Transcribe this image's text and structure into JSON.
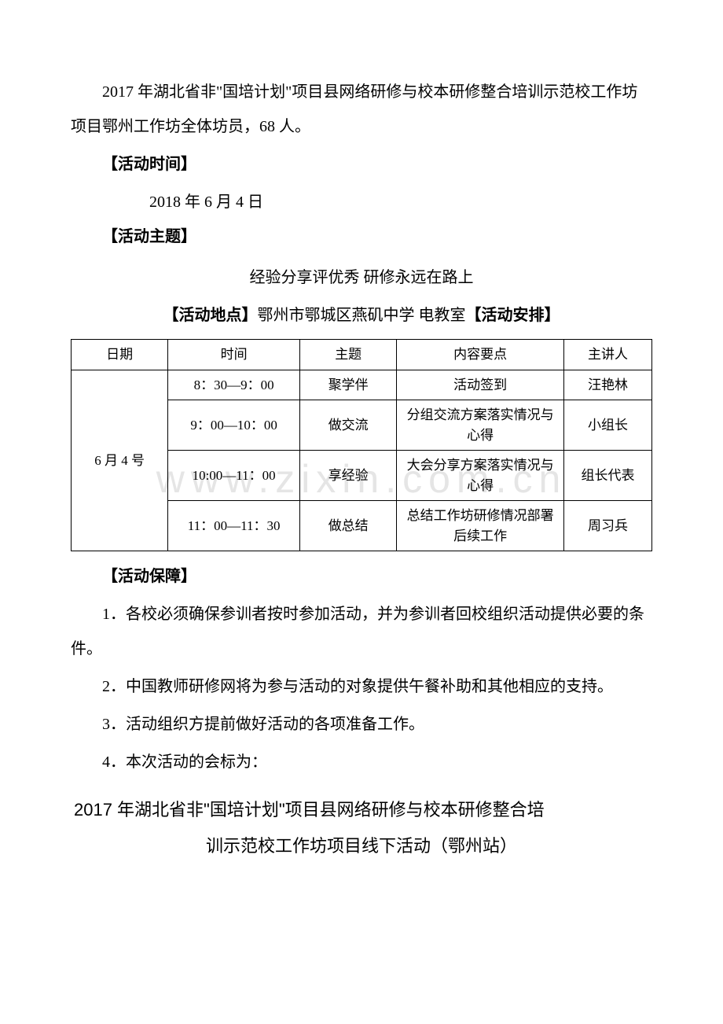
{
  "intro": "2017 年湖北省非\"国培计划\"项目县网络研修与校本研修整合培训示范校工作坊项目鄂州工作坊全体坊员，68 人。",
  "labels": {
    "time": "【活动时间】",
    "theme": "【活动主题】",
    "location": "【活动地点】",
    "arrangement": "【活动安排】",
    "guarantee": "【活动保障】"
  },
  "activity_date": "2018 年 6 月 4  日",
  "theme_text": "经验分享评优秀  研修永远在路上",
  "location_text": "鄂州市鄂城区燕矶中学  电教室",
  "table": {
    "headers": [
      "日期",
      "时间",
      "主题",
      "内容要点",
      "主讲人"
    ],
    "date_cell": "6 月 4 号",
    "rows": [
      {
        "time": "8：30—9：00",
        "topic": "聚学伴",
        "content": "活动签到",
        "speaker": "汪艳林"
      },
      {
        "time": "9：00—10：00",
        "topic": "做交流",
        "content": "分组交流方案落实情况与心得",
        "speaker": "小组长"
      },
      {
        "time": "10:00—11：00",
        "topic": "享经验",
        "content": "大会分享方案落实情况与心得",
        "speaker": "组长代表"
      },
      {
        "time": "11：00—11：30",
        "topic": "做总结",
        "content": "总结工作坊研修情况部署后续工作",
        "speaker": "周习兵"
      }
    ]
  },
  "guarantees": [
    "1．各校必须确保参训者按时参加活动，并为参训者回校组织活动提供必要的条件。",
    "2．中国教师研修网将为参与活动的对象提供午餐补助和其他相应的支持。",
    "3．活动组织方提前做好活动的各项准备工作。",
    "4．本次活动的会标为："
  ],
  "footer_line1": "2017 年湖北省非\"国培计划\"项目县网络研修与校本研修整合培",
  "footer_line2": "训示范校工作坊项目线下活动（鄂州站）",
  "watermark": "www.zixin.com.cn"
}
